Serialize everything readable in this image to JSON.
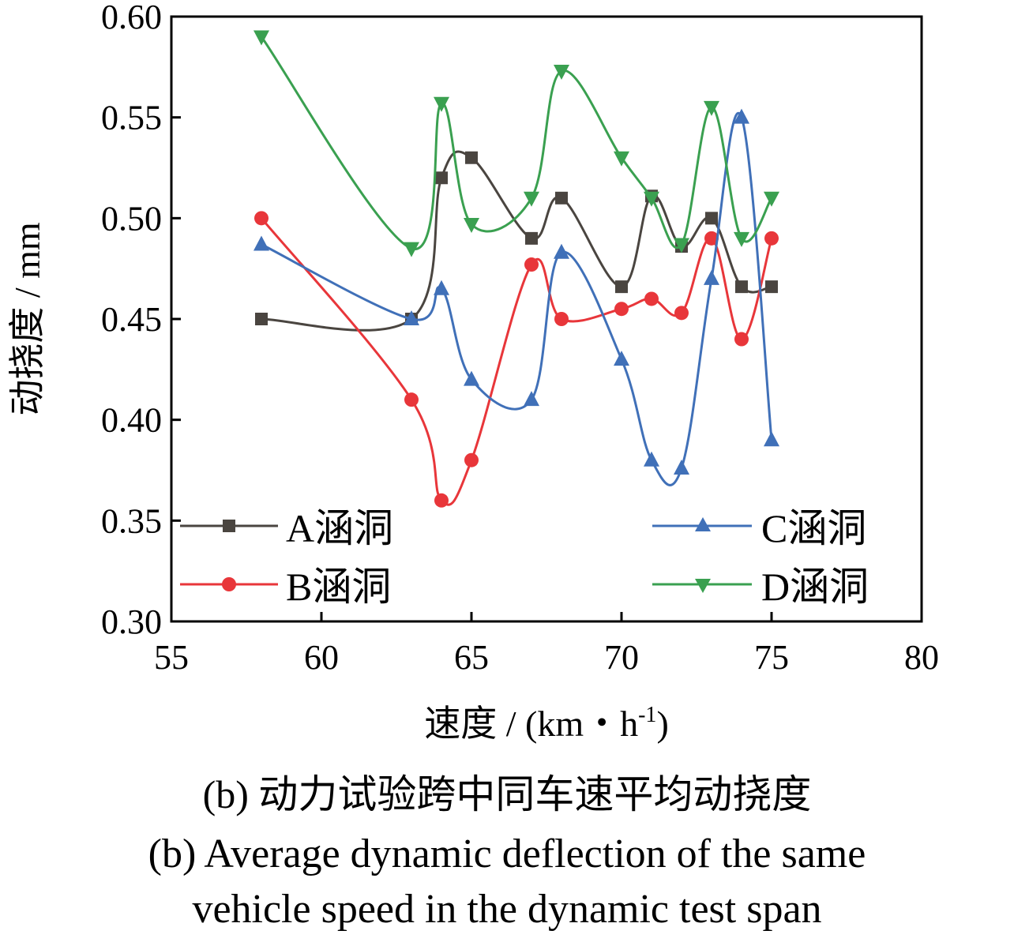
{
  "chart_data": {
    "type": "line",
    "ylabel": "动挠度 / mm",
    "xlabel": "速度 / (km・h",
    "xlabel_sup": "-1",
    "xlabel_close": ")",
    "xlim": [
      55,
      80
    ],
    "ylim": [
      0.3,
      0.6
    ],
    "xticks": [
      "55",
      "60",
      "65",
      "70",
      "75",
      "80"
    ],
    "yticks": [
      "0.30",
      "0.35",
      "0.40",
      "0.45",
      "0.50",
      "0.55",
      "0.60"
    ],
    "grid": false,
    "legend_position": "bottom",
    "x": [
      58,
      63,
      64,
      65,
      67,
      68,
      70,
      71,
      72,
      73,
      74,
      75
    ],
    "series": [
      {
        "name": "A涵洞",
        "color": "#4a4540",
        "marker": "square",
        "values": [
          0.45,
          0.45,
          0.52,
          0.53,
          0.49,
          0.51,
          0.466,
          0.511,
          0.486,
          0.5,
          0.466,
          0.466
        ]
      },
      {
        "name": "B涵洞",
        "color": "#e8363a",
        "marker": "circle",
        "values": [
          0.5,
          0.41,
          0.36,
          0.38,
          0.477,
          0.45,
          0.455,
          0.46,
          0.453,
          0.49,
          0.44,
          0.49
        ]
      },
      {
        "name": "C涵洞",
        "color": "#4070b8",
        "marker": "triangle-up",
        "values": [
          0.487,
          0.45,
          0.465,
          0.42,
          0.41,
          0.483,
          0.43,
          0.38,
          0.376,
          0.47,
          0.55,
          0.39
        ]
      },
      {
        "name": "D涵洞",
        "color": "#3aa050",
        "marker": "triangle-down",
        "values": [
          0.59,
          0.485,
          0.557,
          0.497,
          0.51,
          0.573,
          0.53,
          0.51,
          0.487,
          0.555,
          0.49,
          0.51
        ]
      }
    ]
  },
  "captions": {
    "cn": "(b)  动力试验跨中同车速平均动挠度",
    "en_line1": "(b)  Average dynamic deflection of the same",
    "en_line2": "vehicle speed in the dynamic test span"
  }
}
